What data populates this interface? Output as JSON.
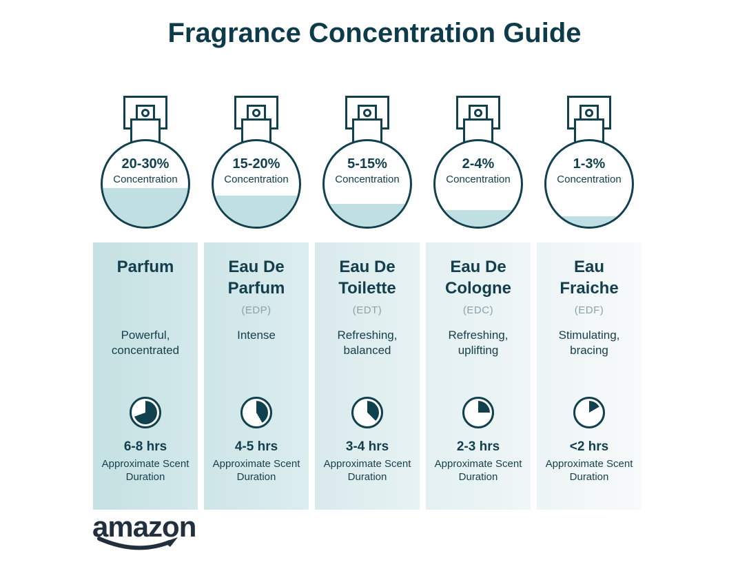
{
  "page": {
    "title": "Fragrance Concentration Guide",
    "brand": "amazon"
  },
  "colors": {
    "ink": "#11404e",
    "water": "#bfdfe2",
    "abbr_gray": "#8da0a8",
    "logo": "#222f3d",
    "column_gradients": [
      [
        "#c5e1e3",
        "#d3e8ea"
      ],
      [
        "#cee5e7",
        "#dcedee"
      ],
      [
        "#d9eaec",
        "#e7f2f3"
      ],
      [
        "#e3f0f1",
        "#eff6f7"
      ],
      [
        "#edf4f5",
        "#f7fafb"
      ]
    ]
  },
  "bottles": [
    {
      "range": "20-30%",
      "label": "Concentration",
      "fill_percent": 45
    },
    {
      "range": "15-20%",
      "label": "Concentration",
      "fill_percent": 36
    },
    {
      "range": "5-15%",
      "label": "Concentration",
      "fill_percent": 27
    },
    {
      "range": "2-4%",
      "label": "Concentration",
      "fill_percent": 19
    },
    {
      "range": "1-3%",
      "label": "Concentration",
      "fill_percent": 12
    }
  ],
  "columns": [
    {
      "name": "Parfum",
      "abbr": "",
      "description": "Powerful, concentrated",
      "duration": "6-8 hrs",
      "duration_note": "Approximate Scent Duration",
      "clock_degrees": 250
    },
    {
      "name": "Eau De Parfum",
      "abbr": "(EDP)",
      "description": "Intense",
      "duration": "4-5 hrs",
      "duration_note": "Approximate Scent Duration",
      "clock_degrees": 150
    },
    {
      "name": "Eau De Toilette",
      "abbr": "(EDT)",
      "description": "Refreshing, balanced",
      "duration": "3-4 hrs",
      "duration_note": "Approximate Scent Duration",
      "clock_degrees": 135
    },
    {
      "name": "Eau De Cologne",
      "abbr": "(EDC)",
      "description": "Refreshing, uplifting",
      "duration": "2-3 hrs",
      "duration_note": "Approximate Scent Duration",
      "clock_degrees": 90
    },
    {
      "name": "Eau Fraiche",
      "abbr": "(EDF)",
      "description": "Stimulating, bracing",
      "duration": "<2 hrs",
      "duration_note": "Approximate Scent Duration",
      "clock_degrees": 60
    }
  ]
}
